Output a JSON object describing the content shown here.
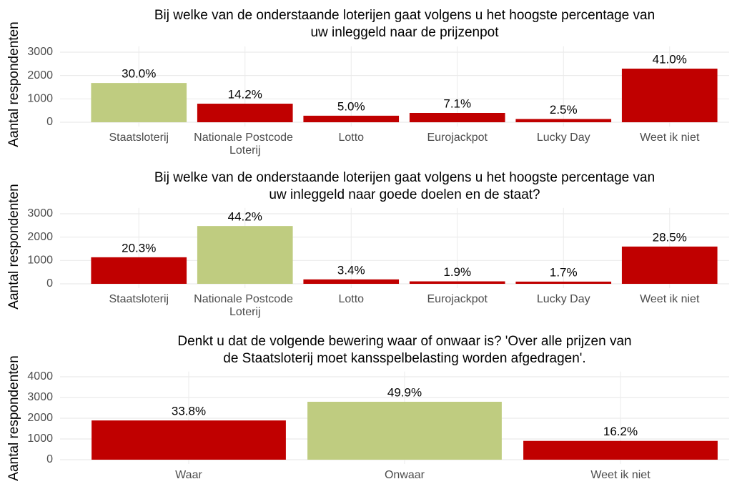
{
  "chart_data": [
    {
      "type": "bar",
      "title": [
        "Bij welke van de onderstaande loterijen gaat volgens u het hoogste percentage van",
        "uw inleggeld naar de prijzenpot"
      ],
      "y_label": "Aantal respondenten",
      "categories": [
        "Staatsloterij",
        "Nationale Postcode Loterij",
        "Lotto",
        "Eurojackpot",
        "Lucky Day",
        "Weet ik niet"
      ],
      "values": [
        1680,
        795,
        280,
        398,
        140,
        2296
      ],
      "value_labels": [
        "30.0%",
        "14.2%",
        "5.0%",
        "7.1%",
        "2.5%",
        "41.0%"
      ],
      "colors": [
        "#bfcc80",
        "#c00000",
        "#c00000",
        "#c00000",
        "#c00000",
        "#c00000"
      ],
      "ylim": [
        0,
        3250
      ],
      "yticks": [
        0,
        1000,
        2000,
        3000
      ],
      "grid": true
    },
    {
      "type": "bar",
      "title": [
        "Bij welke van de onderstaande loterijen gaat volgens u het hoogste percentage van",
        "uw inleggeld naar goede doelen en de staat?"
      ],
      "y_label": "Aantal respondenten",
      "categories": [
        "Staatsloterij",
        "Nationale Postcode Loterij",
        "Lotto",
        "Eurojackpot",
        "Lucky Day",
        "Weet ik niet"
      ],
      "values": [
        1137,
        2475,
        190,
        106,
        95,
        1596
      ],
      "value_labels": [
        "20.3%",
        "44.2%",
        "3.4%",
        "1.9%",
        "1.7%",
        "28.5%"
      ],
      "colors": [
        "#c00000",
        "#bfcc80",
        "#c00000",
        "#c00000",
        "#c00000",
        "#c00000"
      ],
      "ylim": [
        0,
        3250
      ],
      "yticks": [
        0,
        1000,
        2000,
        3000
      ],
      "grid": true
    },
    {
      "type": "bar",
      "title": [
        "Denkt u dat de volgende bewering waar of onwaar is? 'Over alle prijzen van",
        "de Staatsloterij moet kansspelbelasting worden afgedragen'."
      ],
      "y_label": "Aantal respondenten",
      "categories": [
        "Waar",
        "Onwaar",
        "Weet ik niet"
      ],
      "values": [
        1893,
        2794,
        907
      ],
      "value_labels": [
        "33.8%",
        "49.9%",
        "16.2%"
      ],
      "colors": [
        "#c00000",
        "#bfcc80",
        "#c00000"
      ],
      "ylim": [
        0,
        4250
      ],
      "yticks": [
        0,
        1000,
        2000,
        3000,
        4000
      ],
      "grid": true
    }
  ]
}
